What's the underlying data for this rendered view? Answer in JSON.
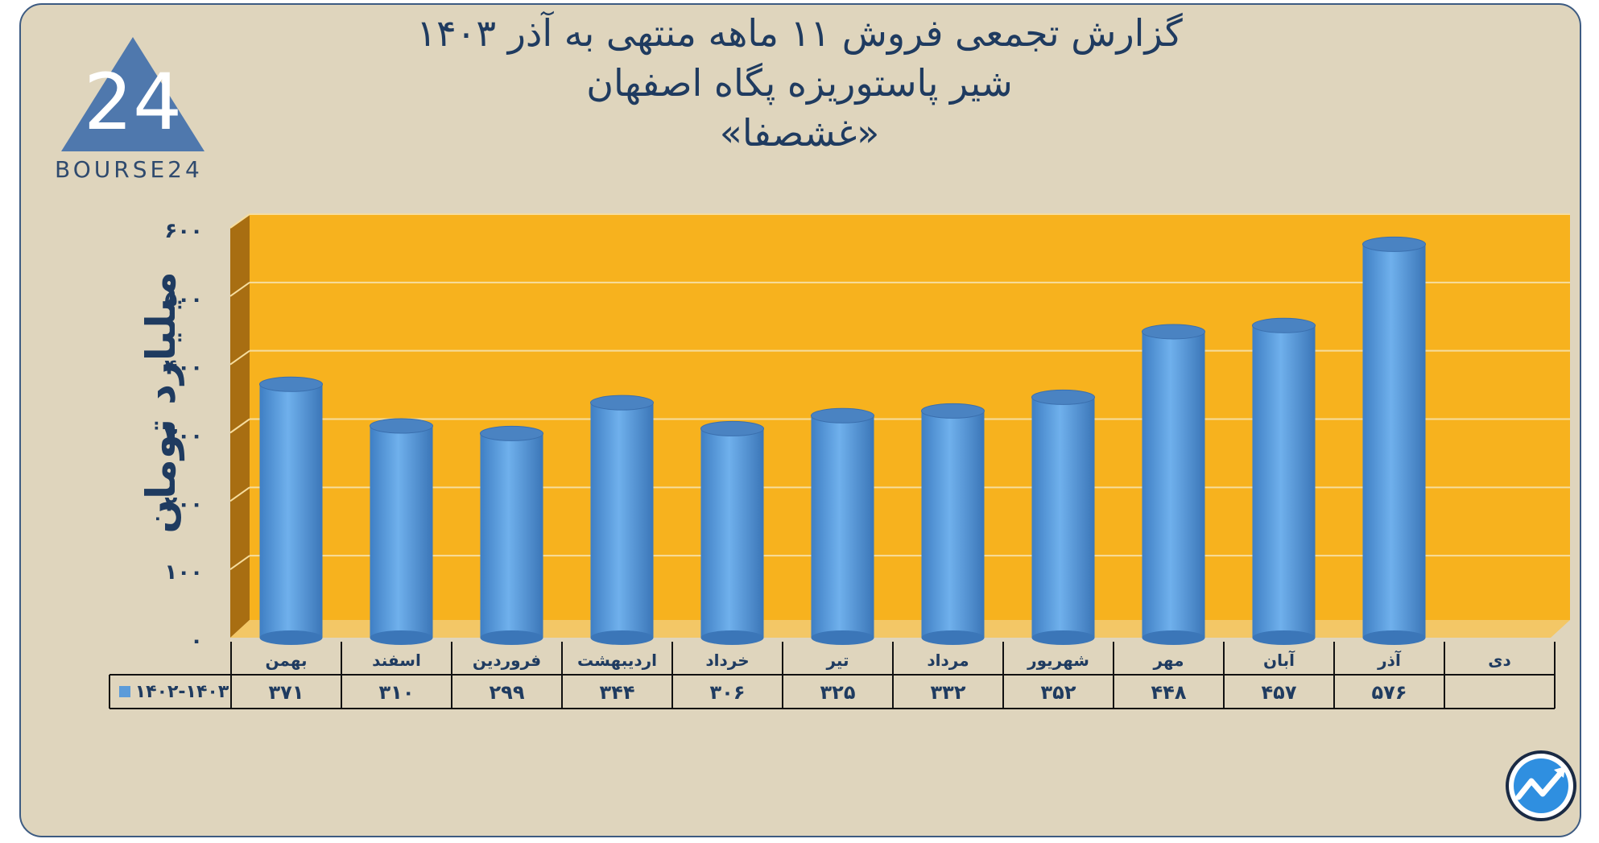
{
  "page": {
    "title_line1": "گزارش تجمعی فروش ۱۱ ماهه منتهی به آذر ۱۴۰۳",
    "title_line2": "شیر پاستوریزه پگاه اصفهان",
    "title_line3": "«غشصفا»",
    "logo_text": "BOURSE24",
    "logo_numeral": "24"
  },
  "colors": {
    "frame_bg": "#dfd5bd",
    "plot_bg": "#f7b21e",
    "bar": "#5b9bd9",
    "text": "#1f3b60"
  },
  "chart_data": {
    "type": "bar",
    "ylabel": "میلیارد تومان",
    "y_ticks": [
      "۰",
      "۱۰۰",
      "۲۰۰",
      "۳۰۰",
      "۴۰۰",
      "۵۰۰",
      "۶۰۰"
    ],
    "ylim": [
      0,
      600
    ],
    "categories": [
      "بهمن",
      "اسفند",
      "فروردین",
      "اردیبهشت",
      "خرداد",
      "تیر",
      "مرداد",
      "شهریور",
      "مهر",
      "آبان",
      "آذر",
      "دی"
    ],
    "series": [
      {
        "name": "۱۴۰۲-۱۴۰۳",
        "values": [
          371,
          310,
          299,
          344,
          306,
          325,
          332,
          352,
          448,
          457,
          576,
          null
        ],
        "value_labels": [
          "۳۷۱",
          "۳۱۰",
          "۲۹۹",
          "۳۴۴",
          "۳۰۶",
          "۳۲۵",
          "۳۳۲",
          "۳۵۲",
          "۴۴۸",
          "۴۵۷",
          "۵۷۶",
          ""
        ]
      }
    ],
    "grid": true,
    "legend": "data-table"
  }
}
